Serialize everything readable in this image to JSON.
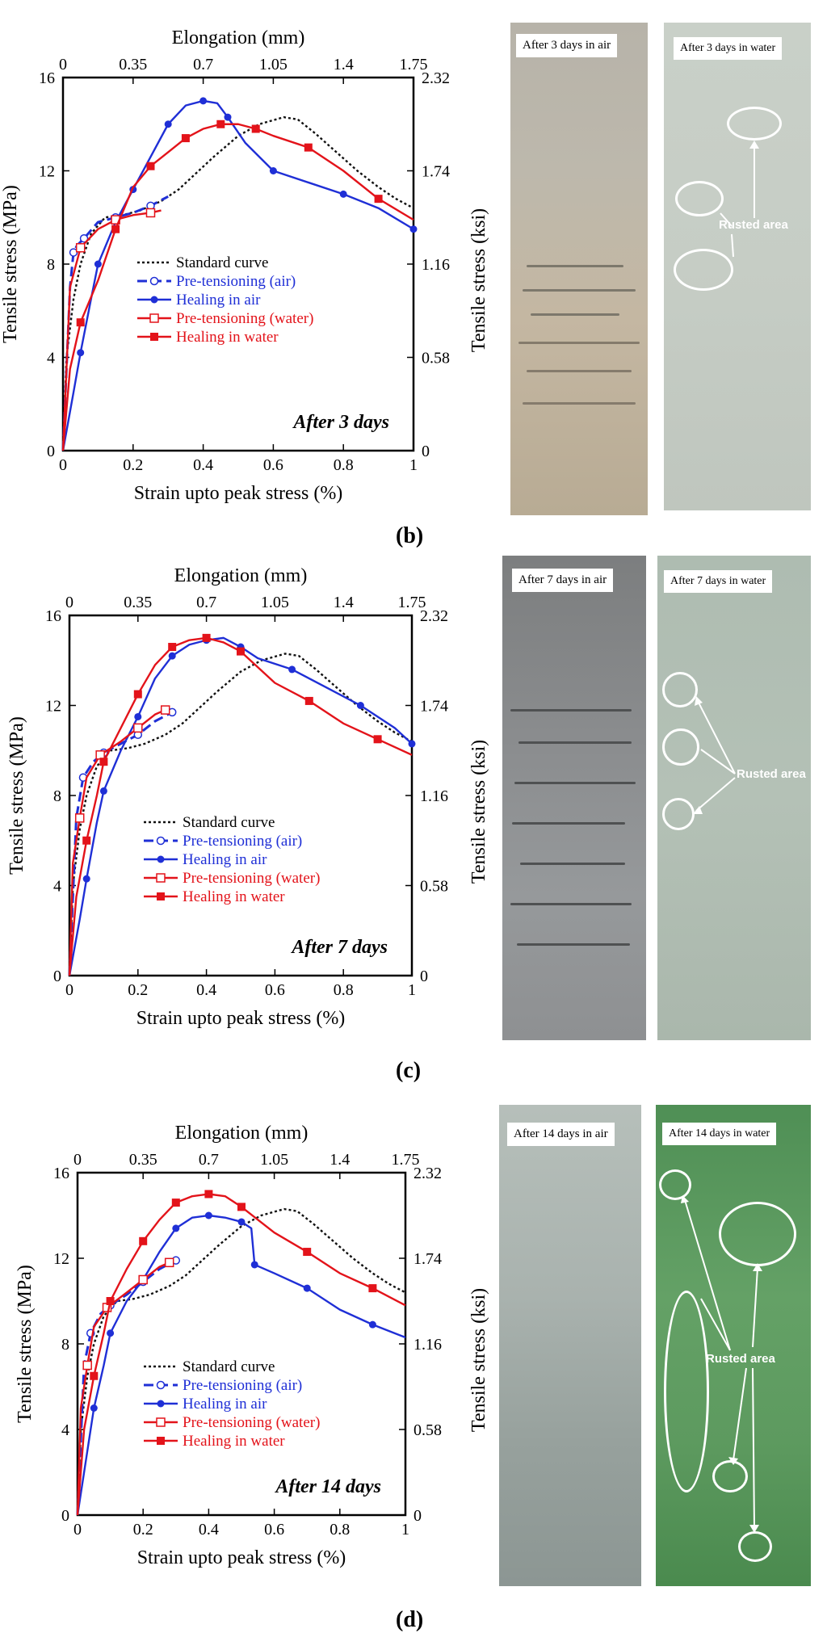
{
  "colors": {
    "standard": "#111111",
    "air": "#1f2fd6",
    "water": "#e3131a"
  },
  "chart_data": [
    {
      "type": "line",
      "panel": "(b)",
      "title_annotation": "After 3 days",
      "xlabel": "Strain upto peak stress (%)",
      "xlabel_top": "Elongation (mm)",
      "ylabel": "Tensile stress (MPa)",
      "ylabel_right": "Tensile stress (ksi)",
      "xlim": [
        0,
        1
      ],
      "ylim": [
        0,
        16
      ],
      "x_ticks": [
        "0",
        "0.2",
        "0.4",
        "0.6",
        "0.8",
        "1"
      ],
      "x_top_ticks": [
        "0",
        "0.35",
        "0.7",
        "1.05",
        "1.4",
        "1.75"
      ],
      "y_ticks": [
        "0",
        "4",
        "8",
        "12",
        "16"
      ],
      "y_right_ticks": [
        "0",
        "0.58",
        "1.16",
        "1.74",
        "2.32"
      ],
      "legend": [
        "Standard curve",
        "Pre-tensioning (air)",
        "Healing in air",
        "Pre-tensioning (water)",
        "Healing in water"
      ],
      "legend_placement": "center",
      "series": [
        {
          "name": "Standard curve",
          "style": "dotted",
          "marker": "none",
          "x": [
            0,
            0.01,
            0.03,
            0.05,
            0.08,
            0.12,
            0.17,
            0.22,
            0.28,
            0.33,
            0.38,
            0.43,
            0.5,
            0.56,
            0.63,
            0.67,
            0.72,
            0.78,
            0.84,
            0.9,
            0.95,
            1.0
          ],
          "y": [
            0,
            4,
            6.5,
            8,
            9.3,
            10,
            10.1,
            10.3,
            10.7,
            11.2,
            11.9,
            12.6,
            13.5,
            14.0,
            14.3,
            14.2,
            13.6,
            12.8,
            12.0,
            11.3,
            10.8,
            10.4
          ]
        },
        {
          "name": "Pre-tensioning (air)",
          "style": "dashed",
          "marker": "open-circle",
          "x": [
            0.0,
            0.02,
            0.03,
            0.04,
            0.06,
            0.1,
            0.15,
            0.2,
            0.25,
            0.3
          ],
          "y": [
            0,
            7.0,
            8.5,
            8.8,
            9.1,
            9.8,
            10.0,
            10.2,
            10.5,
            10.9
          ]
        },
        {
          "name": "Healing in air",
          "style": "solid",
          "marker": "filled-circle",
          "x": [
            0.0,
            0.03,
            0.05,
            0.08,
            0.1,
            0.15,
            0.2,
            0.25,
            0.3,
            0.35,
            0.4,
            0.44,
            0.47,
            0.52,
            0.6,
            0.7,
            0.8,
            0.9,
            1.0
          ],
          "y": [
            0,
            2.5,
            4.2,
            6.5,
            8.0,
            9.8,
            11.2,
            12.6,
            14.0,
            14.8,
            15.0,
            14.9,
            14.3,
            13.2,
            12.0,
            11.5,
            11.0,
            10.4,
            9.5
          ]
        },
        {
          "name": "Pre-tensioning (water)",
          "style": "solid",
          "marker": "open-square",
          "x": [
            0.0,
            0.02,
            0.05,
            0.1,
            0.15,
            0.2,
            0.25,
            0.28
          ],
          "y": [
            0,
            7.0,
            8.7,
            9.5,
            9.9,
            10.1,
            10.2,
            10.3
          ]
        },
        {
          "name": "Healing in water",
          "style": "solid",
          "marker": "filled-square",
          "x": [
            0.0,
            0.02,
            0.05,
            0.1,
            0.15,
            0.2,
            0.25,
            0.3,
            0.35,
            0.4,
            0.45,
            0.5,
            0.55,
            0.6,
            0.7,
            0.8,
            0.9,
            1.0
          ],
          "y": [
            0,
            3.5,
            5.5,
            7.3,
            9.5,
            11.3,
            12.2,
            12.8,
            13.4,
            13.8,
            14.0,
            14.0,
            13.8,
            13.5,
            13.0,
            12.0,
            10.8,
            9.9
          ]
        }
      ]
    },
    {
      "type": "line",
      "panel": "(c)",
      "title_annotation": "After 7 days",
      "xlabel": "Strain upto peak stress (%)",
      "xlabel_top": "Elongation (mm)",
      "ylabel": "Tensile stress (MPa)",
      "ylabel_right": "Tensile stress (ksi)",
      "xlim": [
        0,
        1
      ],
      "ylim": [
        0,
        16
      ],
      "x_ticks": [
        "0",
        "0.2",
        "0.4",
        "0.6",
        "0.8",
        "1"
      ],
      "x_top_ticks": [
        "0",
        "0.35",
        "0.7",
        "1.05",
        "1.4",
        "1.75"
      ],
      "y_ticks": [
        "0",
        "4",
        "8",
        "12",
        "16"
      ],
      "y_right_ticks": [
        "0",
        "0.58",
        "1.16",
        "1.74",
        "2.32"
      ],
      "legend": [
        "Standard curve",
        "Pre-tensioning (air)",
        "Healing in air",
        "Pre-tensioning (water)",
        "Healing in water"
      ],
      "legend_placement": "lower center",
      "series": [
        {
          "name": "Standard curve",
          "style": "dotted",
          "marker": "none",
          "x": [
            0,
            0.01,
            0.03,
            0.05,
            0.08,
            0.12,
            0.17,
            0.22,
            0.28,
            0.33,
            0.38,
            0.43,
            0.5,
            0.56,
            0.63,
            0.67,
            0.72,
            0.78,
            0.84,
            0.9,
            0.95,
            1.0
          ],
          "y": [
            0,
            4,
            6.5,
            8,
            9.3,
            10,
            10.1,
            10.3,
            10.7,
            11.2,
            11.9,
            12.6,
            13.5,
            14.0,
            14.3,
            14.2,
            13.6,
            12.8,
            12.0,
            11.3,
            10.8,
            10.4
          ]
        },
        {
          "name": "Pre-tensioning (air)",
          "style": "dashed",
          "marker": "open-circle",
          "x": [
            0.0,
            0.02,
            0.04,
            0.07,
            0.1,
            0.15,
            0.2,
            0.25,
            0.3
          ],
          "y": [
            0,
            7.0,
            8.8,
            9.5,
            9.9,
            10.3,
            10.7,
            11.3,
            11.7
          ]
        },
        {
          "name": "Healing in air",
          "style": "solid",
          "marker": "filled-circle",
          "x": [
            0.0,
            0.03,
            0.05,
            0.08,
            0.1,
            0.15,
            0.2,
            0.25,
            0.3,
            0.35,
            0.4,
            0.45,
            0.5,
            0.55,
            0.65,
            0.75,
            0.85,
            0.95,
            1.0
          ],
          "y": [
            0,
            2.5,
            4.3,
            6.8,
            8.2,
            10.0,
            11.5,
            13.2,
            14.2,
            14.7,
            14.9,
            15.0,
            14.6,
            14.1,
            13.6,
            12.8,
            12.0,
            11.0,
            10.3
          ]
        },
        {
          "name": "Pre-tensioning (water)",
          "style": "solid",
          "marker": "open-square",
          "x": [
            0.0,
            0.01,
            0.03,
            0.05,
            0.09,
            0.15,
            0.2,
            0.25,
            0.28
          ],
          "y": [
            0,
            5.0,
            7.0,
            8.8,
            9.8,
            10.4,
            11.0,
            11.6,
            11.8
          ]
        },
        {
          "name": "Healing in water",
          "style": "solid",
          "marker": "filled-square",
          "x": [
            0.0,
            0.02,
            0.05,
            0.08,
            0.1,
            0.15,
            0.2,
            0.25,
            0.3,
            0.35,
            0.4,
            0.45,
            0.5,
            0.6,
            0.7,
            0.8,
            0.9,
            1.0
          ],
          "y": [
            0,
            3.5,
            6.0,
            8.0,
            9.5,
            11.0,
            12.5,
            13.8,
            14.6,
            14.9,
            15.0,
            14.8,
            14.4,
            13.0,
            12.2,
            11.2,
            10.5,
            9.8
          ]
        }
      ]
    },
    {
      "type": "line",
      "panel": "(d)",
      "title_annotation": "After 14 days",
      "xlabel": "Strain upto peak stress (%)",
      "xlabel_top": "Elongation (mm)",
      "ylabel": "Tensile stress (MPa)",
      "ylabel_right": "Tensile stress (ksi)",
      "xlim": [
        0,
        1
      ],
      "ylim": [
        0,
        16
      ],
      "x_ticks": [
        "0",
        "0.2",
        "0.4",
        "0.6",
        "0.8",
        "1"
      ],
      "x_top_ticks": [
        "0",
        "0.35",
        "0.7",
        "1.05",
        "1.4",
        "1.75"
      ],
      "y_ticks": [
        "0",
        "4",
        "8",
        "12",
        "16"
      ],
      "y_right_ticks": [
        "0",
        "0.58",
        "1.16",
        "1.74",
        "2.32"
      ],
      "legend": [
        "Standard curve",
        "Pre-tensioning (air)",
        "Healing in air",
        "Pre-tensioning (water)",
        "Healing in water"
      ],
      "legend_placement": "lower center",
      "series": [
        {
          "name": "Standard curve",
          "style": "dotted",
          "marker": "none",
          "x": [
            0,
            0.01,
            0.03,
            0.05,
            0.08,
            0.12,
            0.17,
            0.22,
            0.28,
            0.33,
            0.38,
            0.43,
            0.5,
            0.56,
            0.63,
            0.67,
            0.72,
            0.78,
            0.84,
            0.9,
            0.95,
            1.0
          ],
          "y": [
            0,
            4,
            6.5,
            8,
            9.3,
            10,
            10.1,
            10.3,
            10.7,
            11.2,
            11.9,
            12.6,
            13.5,
            14.0,
            14.3,
            14.2,
            13.6,
            12.8,
            12.0,
            11.3,
            10.8,
            10.4
          ]
        },
        {
          "name": "Pre-tensioning (air)",
          "style": "dashed",
          "marker": "open-circle",
          "x": [
            0.0,
            0.02,
            0.04,
            0.07,
            0.1,
            0.15,
            0.2,
            0.25,
            0.3
          ],
          "y": [
            0,
            7.0,
            8.5,
            9.4,
            9.8,
            10.3,
            10.9,
            11.5,
            11.9
          ]
        },
        {
          "name": "Healing in air",
          "style": "solid",
          "marker": "filled-circle",
          "x": [
            0.0,
            0.03,
            0.05,
            0.08,
            0.1,
            0.15,
            0.2,
            0.25,
            0.3,
            0.35,
            0.4,
            0.45,
            0.5,
            0.53,
            0.54,
            0.6,
            0.7,
            0.8,
            0.9,
            1.0
          ],
          "y": [
            0,
            3.0,
            5.0,
            7.0,
            8.5,
            10.0,
            11.0,
            12.3,
            13.4,
            13.9,
            14.0,
            13.9,
            13.7,
            13.4,
            11.7,
            11.3,
            10.6,
            9.6,
            8.9,
            8.3
          ]
        },
        {
          "name": "Pre-tensioning (water)",
          "style": "solid",
          "marker": "open-square",
          "x": [
            0.0,
            0.01,
            0.03,
            0.05,
            0.09,
            0.15,
            0.2,
            0.25,
            0.28
          ],
          "y": [
            0,
            5.0,
            7.0,
            8.8,
            9.7,
            10.4,
            11.0,
            11.6,
            11.8
          ]
        },
        {
          "name": "Healing in water",
          "style": "solid",
          "marker": "filled-square",
          "x": [
            0.0,
            0.02,
            0.05,
            0.08,
            0.1,
            0.15,
            0.2,
            0.25,
            0.3,
            0.35,
            0.4,
            0.45,
            0.5,
            0.6,
            0.7,
            0.8,
            0.9,
            1.0
          ],
          "y": [
            0,
            4.0,
            6.5,
            8.5,
            10.0,
            11.5,
            12.8,
            13.8,
            14.6,
            14.9,
            15.0,
            14.9,
            14.4,
            13.2,
            12.3,
            11.3,
            10.6,
            9.8
          ]
        }
      ]
    }
  ],
  "photos": [
    {
      "panel": "(b)",
      "air_caption": "After 3 days in air",
      "water_caption": "After 3 days in water",
      "rust_label": "Rusted area"
    },
    {
      "panel": "(c)",
      "air_caption": "After 7 days in air",
      "water_caption": "After 7 days in water",
      "rust_label": "Rusted area"
    },
    {
      "panel": "(d)",
      "air_caption": "After 14 days in air",
      "water_caption": "After 14 days in water",
      "rust_label": "Rusted area"
    }
  ],
  "panel_letters": [
    "(b)",
    "(c)",
    "(d)"
  ]
}
